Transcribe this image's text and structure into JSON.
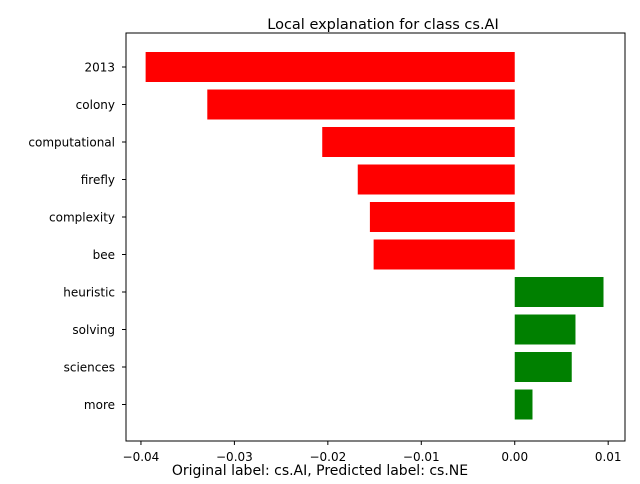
{
  "chart_data": {
    "type": "bar",
    "orientation": "horizontal",
    "title": "Local explanation for class cs.AI",
    "footer": "Original label: cs.AI, Predicted label: cs.NE",
    "xlabel": "",
    "ylabel": "",
    "xlim": [
      -0.0416,
      0.0118
    ],
    "x_ticks": [
      -0.04,
      -0.03,
      -0.02,
      -0.01,
      0.0,
      0.01
    ],
    "x_tick_labels": [
      "−0.04",
      "−0.03",
      "−0.02",
      "−0.01",
      "0.00",
      "0.01"
    ],
    "categories": [
      "2013",
      "colony",
      "computational",
      "firefly",
      "complexity",
      "bee",
      "heuristic",
      "solving",
      "sciences",
      "more"
    ],
    "values": [
      -0.0395,
      -0.0329,
      -0.0206,
      -0.0168,
      -0.0155,
      -0.0151,
      0.0095,
      0.0065,
      0.0061,
      0.0019
    ],
    "grid": false,
    "colors": {
      "negative": "#ff0000",
      "positive": "#008000"
    }
  }
}
